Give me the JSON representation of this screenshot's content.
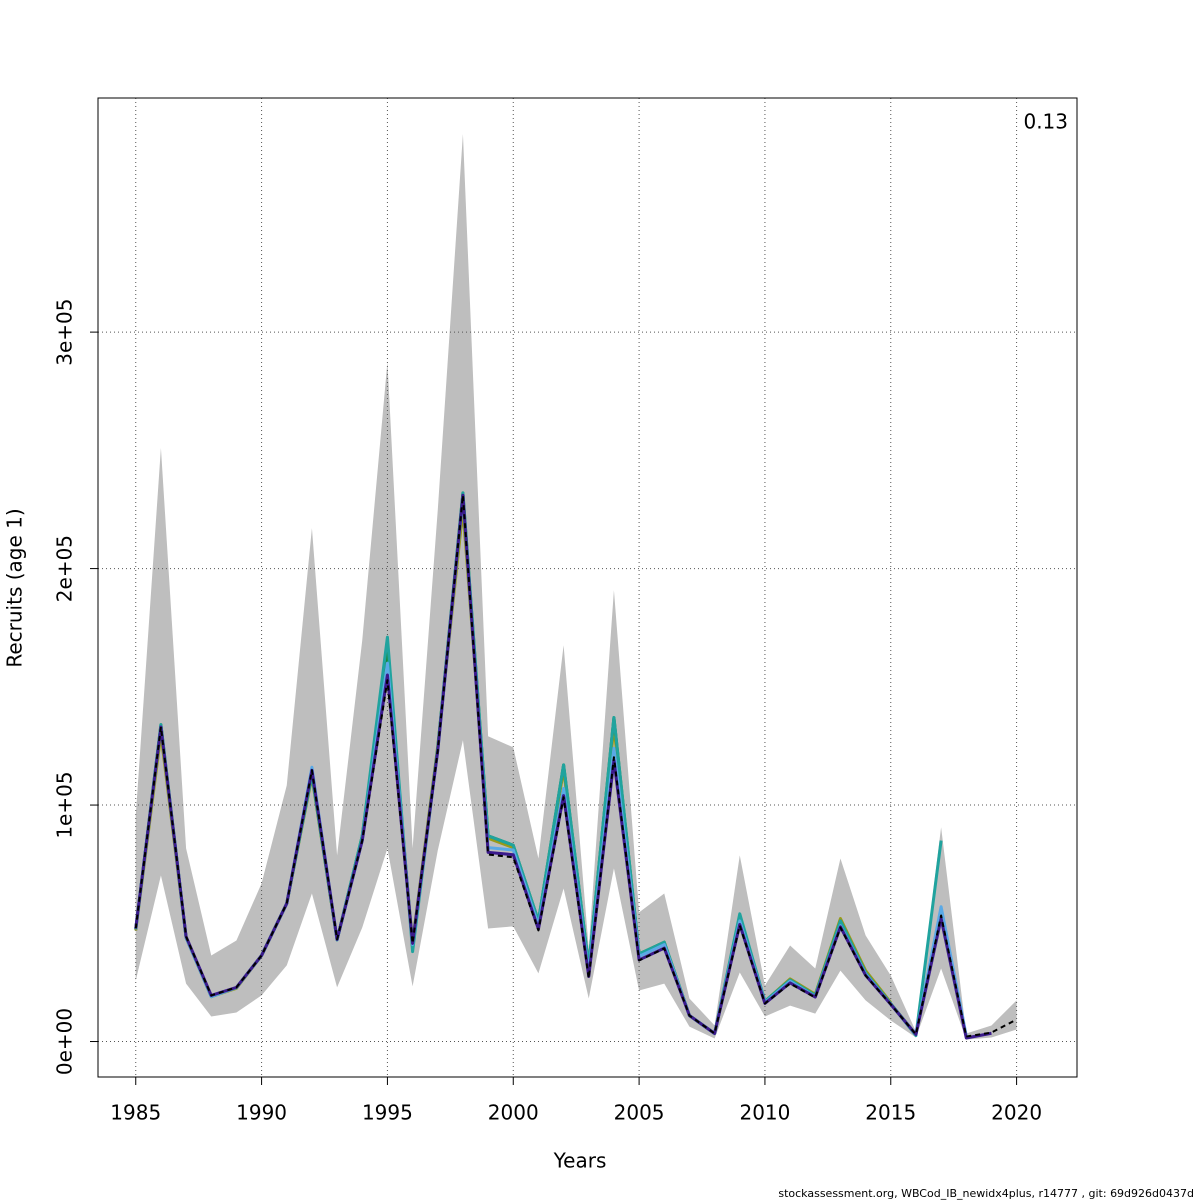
{
  "chart_data": {
    "type": "line",
    "x_label": "Years",
    "y_label": "Recruits (age 1)",
    "annotation": "0.13",
    "footer": "stockassessment.org, WBCod_IB_newidx4plus, r14777 , git: 69d926d0437d",
    "x": [
      1985,
      1986,
      1987,
      1988,
      1989,
      1990,
      1991,
      1992,
      1993,
      1994,
      1995,
      1996,
      1997,
      1998,
      1999,
      2000,
      2001,
      2002,
      2003,
      2004,
      2005,
      2006,
      2007,
      2008,
      2009,
      2010,
      2011,
      2012,
      2013,
      2014,
      2015,
      2016,
      2017,
      2018,
      2019,
      2020
    ],
    "band": {
      "color": "#bebebe",
      "low": [
        25800,
        70200,
        24500,
        10600,
        12300,
        19500,
        32200,
        62600,
        22900,
        48200,
        81700,
        23300,
        80800,
        127400,
        47800,
        48700,
        28800,
        64700,
        18200,
        73200,
        21600,
        24500,
        6300,
        1300,
        29200,
        10600,
        15200,
        11800,
        30000,
        17400,
        8900,
        1700,
        30900,
        800,
        1700,
        5100
      ],
      "high": [
        95600,
        251000,
        81700,
        36400,
        42700,
        66900,
        108300,
        217100,
        78700,
        169700,
        287300,
        81700,
        224700,
        383800,
        129100,
        124400,
        77400,
        167600,
        39400,
        190900,
        54600,
        62600,
        18200,
        6800,
        78700,
        23700,
        40600,
        30900,
        77400,
        44900,
        27900,
        4200,
        90600,
        3400,
        6800,
        17400
      ]
    },
    "series": [
      {
        "color": "#9a9a1a",
        "values": [
          47000,
          130000,
          44000,
          19000,
          22500,
          36400,
          58400,
          112000,
          43000,
          86000,
          158000,
          42000,
          125000,
          225000,
          86000,
          82000,
          50000,
          115000,
          31000,
          133000,
          37000,
          42000,
          11000,
          3400,
          51000,
          17000,
          26500,
          20000,
          52000,
          30000,
          16500,
          null,
          null,
          null,
          null,
          null
        ]
      },
      {
        "color": "#1a8a3a",
        "values": [
          47500,
          134000,
          44000,
          19000,
          22800,
          36400,
          58400,
          113000,
          43000,
          87000,
          165000,
          40000,
          124000,
          232000,
          87000,
          83000,
          51000,
          117000,
          32000,
          137000,
          37000,
          42000,
          11000,
          3400,
          52000,
          17000,
          26000,
          19500,
          51000,
          29000,
          16000,
          3000,
          null,
          null,
          null,
          null
        ]
      },
      {
        "color": "#20a39e",
        "values": [
          47500,
          134000,
          44000,
          19000,
          22800,
          36400,
          58400,
          113000,
          43000,
          87000,
          171000,
          38000,
          124000,
          232000,
          87000,
          83000,
          51000,
          117000,
          32000,
          137000,
          37000,
          42000,
          11000,
          3400,
          54000,
          17000,
          26000,
          19500,
          51000,
          29000,
          16000,
          2500,
          85000,
          null,
          null,
          null
        ]
      },
      {
        "color": "#5aa9e6",
        "values": [
          47500,
          133000,
          44000,
          19000,
          22800,
          36400,
          58400,
          116000,
          43000,
          85000,
          160000,
          41000,
          123000,
          230000,
          82000,
          81000,
          49000,
          107000,
          29000,
          124000,
          36000,
          41000,
          11000,
          3400,
          51000,
          16500,
          25500,
          19000,
          49000,
          28500,
          15700,
          3000,
          57000,
          2500,
          null,
          null
        ]
      },
      {
        "color": "#3b1a8c",
        "values": [
          47800,
          133000,
          44400,
          19500,
          22900,
          36400,
          58400,
          114700,
          43200,
          85000,
          155000,
          41500,
          123000,
          231000,
          80000,
          79000,
          47500,
          104000,
          27500,
          119000,
          34500,
          39500,
          11000,
          3400,
          49500,
          16100,
          24800,
          18800,
          48500,
          28000,
          15700,
          3000,
          52000,
          1500,
          3500,
          null
        ]
      },
      {
        "color": "#000000",
        "dashed": true,
        "values": [
          47800,
          133000,
          44400,
          19500,
          22900,
          36400,
          58400,
          114700,
          43200,
          85000,
          152800,
          41500,
          123000,
          231000,
          79100,
          77900,
          47000,
          103300,
          26700,
          120200,
          34300,
          39400,
          11000,
          3400,
          49100,
          16100,
          24500,
          18600,
          48200,
          27900,
          15700,
          3000,
          53300,
          2100,
          3800,
          9300
        ]
      }
    ],
    "xlim": [
      1983.5,
      2022.4
    ],
    "xticks": [
      1985,
      1990,
      1995,
      2000,
      2005,
      2010,
      2015,
      2020
    ],
    "ylim": [
      -15000,
      399000
    ],
    "yticks": [
      {
        "value": 0,
        "label": "0e+00"
      },
      {
        "value": 100000,
        "label": "1e+05"
      },
      {
        "value": 200000,
        "label": "2e+05"
      },
      {
        "value": 300000,
        "label": "3e+05"
      }
    ],
    "grid": true
  }
}
